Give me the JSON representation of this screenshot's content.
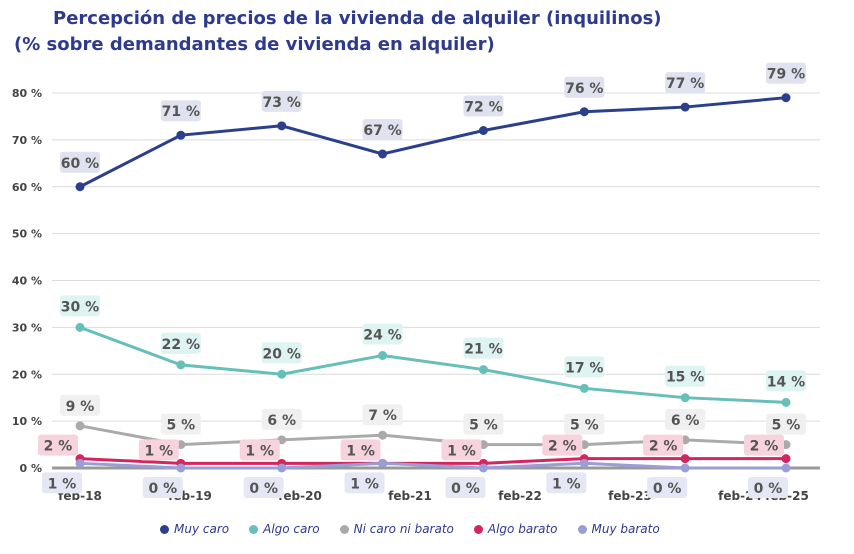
{
  "chart_data": {
    "type": "line",
    "title": "Percepción de precios de la vivienda de alquiler (inquilinos)",
    "subtitle": "(% sobre demandantes de vivienda en alquiler)",
    "categories": [
      "feb-18",
      "feb-19",
      "feb-20",
      "feb-21",
      "feb-22",
      "feb-23",
      "feb-24",
      "feb-25"
    ],
    "ylim": [
      0,
      80
    ],
    "yticks": [
      "0 %",
      "10 %",
      "20 %",
      "30 %",
      "40 %",
      "50 %",
      "60 %",
      "70 %",
      "80 %"
    ],
    "grid": true,
    "legend_position": "bottom",
    "series": [
      {
        "name": "Muy caro",
        "color": "#2b3f8c",
        "label_bg": "#e1e2ef",
        "values": [
          60,
          71,
          73,
          67,
          72,
          76,
          77,
          79
        ],
        "labels": [
          "60 %",
          "71 %",
          "73 %",
          "67 %",
          "72 %",
          "76 %",
          "77 %",
          "79 %"
        ]
      },
      {
        "name": "Algo caro",
        "color": "#66bfb8",
        "label_bg": "#def4f2",
        "values": [
          30,
          22,
          20,
          24,
          21,
          17,
          15,
          14
        ],
        "labels": [
          "30 %",
          "22 %",
          "20 %",
          "24 %",
          "21 %",
          "17 %",
          "15 %",
          "14 %"
        ]
      },
      {
        "name": "Ni caro ni barato",
        "color": "#aaaaaa",
        "label_bg": "#f0f0f0",
        "values": [
          9,
          5,
          6,
          7,
          5,
          5,
          6,
          5
        ],
        "labels": [
          "9 %",
          "5 %",
          "6 %",
          "7 %",
          "5 %",
          "5 %",
          "6 %",
          "5 %"
        ]
      },
      {
        "name": "Algo barato",
        "color": "#d6245e",
        "label_bg": "#f7d3dd",
        "values": [
          2,
          1,
          1,
          1,
          1,
          2,
          2,
          2
        ],
        "labels": [
          "2 %",
          "1 %",
          "1 %",
          "1 %",
          "1 %",
          "2 %",
          "2 %",
          "2 %"
        ]
      },
      {
        "name": "Muy barato",
        "color": "#9a9ed6",
        "label_bg": "#e6e7f5",
        "values": [
          1,
          0,
          0,
          1,
          0,
          1,
          0,
          0
        ],
        "labels": [
          "1 %",
          "0 %",
          "0 %",
          "1 %",
          "0 %",
          "1 %",
          "0 %",
          "0 %"
        ]
      }
    ]
  }
}
